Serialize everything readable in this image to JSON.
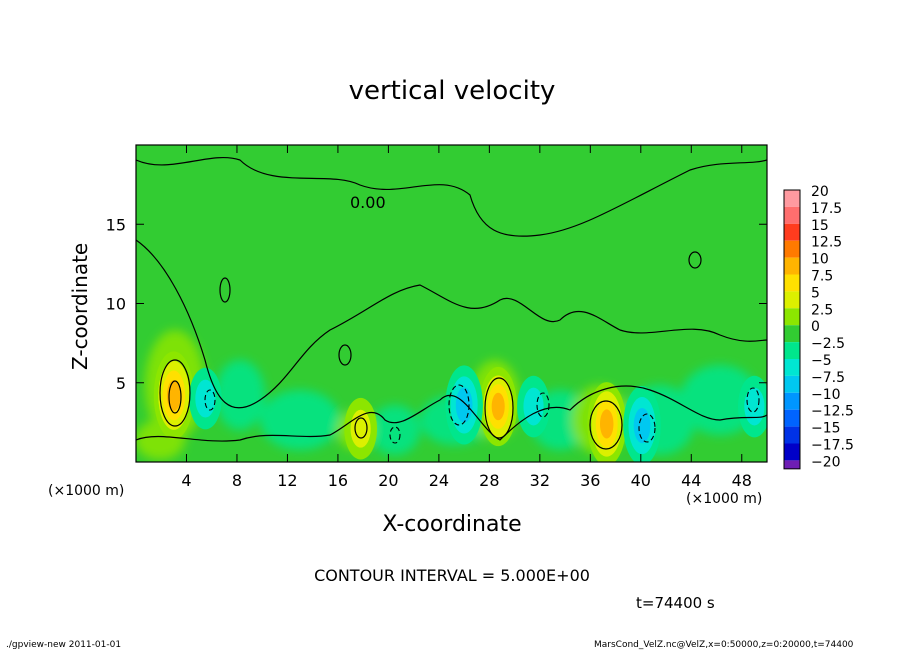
{
  "chart_data": {
    "type": "heatmap",
    "title": "vertical velocity",
    "xlabel": "X-coordinate",
    "ylabel": "Z-coordinate",
    "x_unit": "(×1000 m)",
    "x_unit_right": "(×1000 m)",
    "xlim": [
      0,
      50
    ],
    "ylim": [
      0,
      20
    ],
    "x_ticks": [
      4,
      8,
      12,
      16,
      20,
      24,
      28,
      32,
      36,
      40,
      44,
      48
    ],
    "y_ticks": [
      5,
      10,
      15
    ],
    "contour_interval_text": "CONTOUR INTERVAL = 5.000E+00",
    "contour_label": "0.00",
    "time_text": "t=74400 s",
    "colorbar": {
      "levels": [
        "20",
        "17.5",
        "15",
        "12.5",
        "10",
        "7.5",
        "5",
        "2.5",
        "0",
        "−2.5",
        "−5",
        "−7.5",
        "−10",
        "−12.5",
        "−15",
        "−17.5",
        "−20"
      ],
      "colors": [
        "#ff9aa0",
        "#ff6e6e",
        "#ff3c1e",
        "#ff7a00",
        "#ffb400",
        "#ffe000",
        "#dcf000",
        "#8ce600",
        "#32cc32",
        "#00e68c",
        "#00e6d2",
        "#00c8f0",
        "#0096ff",
        "#0064ff",
        "#0032e6",
        "#0000c8",
        "#6e1eb4"
      ]
    },
    "features": [
      {
        "kind": "updraft",
        "x": 3.0,
        "z": 4.2,
        "max": 10
      },
      {
        "kind": "updraft",
        "x": 28.7,
        "z": 3.5,
        "max": 8
      },
      {
        "kind": "updraft",
        "x": 37.3,
        "z": 2.4,
        "max": 9
      },
      {
        "kind": "updraft",
        "x": 17.8,
        "z": 2.1,
        "max": 4
      },
      {
        "kind": "downdraft",
        "x": 26.0,
        "z": 3.6,
        "min": -8
      },
      {
        "kind": "downdraft",
        "x": 40.1,
        "z": 2.3,
        "min": -8
      },
      {
        "kind": "downdraft",
        "x": 5.5,
        "z": 4.0,
        "min": -4
      },
      {
        "kind": "downdraft",
        "x": 31.5,
        "z": 3.5,
        "min": -4
      },
      {
        "kind": "downdraft",
        "x": 49.0,
        "z": 3.5,
        "min": -4
      }
    ]
  },
  "footer": {
    "left": "./gpview-new  2011-01-01",
    "right": "MarsCond_VelZ.nc@VelZ,x=0:50000,z=0:20000,t=74400"
  }
}
